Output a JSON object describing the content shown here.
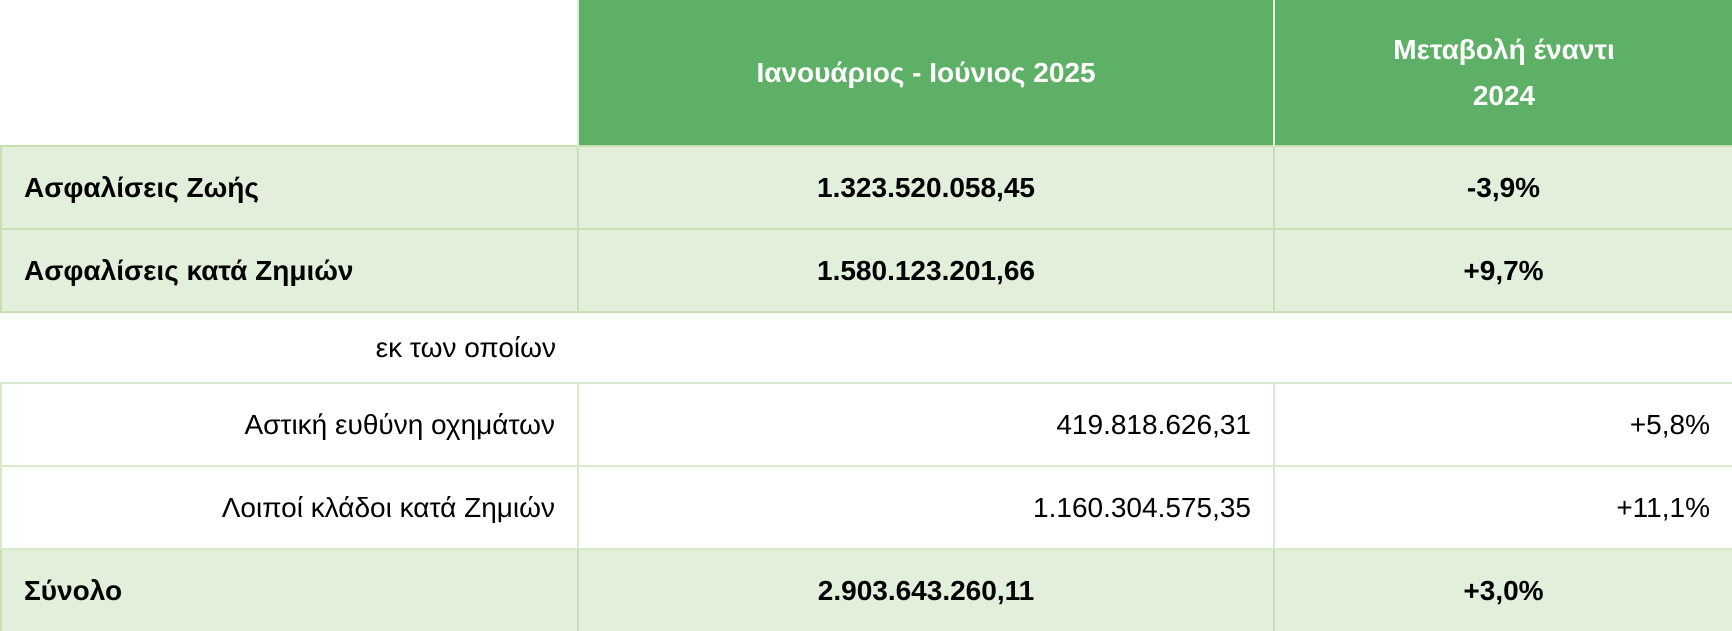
{
  "header": {
    "period": "Ιανουάριος -  Ιούνιος 2025",
    "change_line1": "Μεταβολή έναντι",
    "change_line2": "2024"
  },
  "rows": [
    {
      "label": "Ασφαλίσεις Ζωής",
      "value": "1.323.520.058,45",
      "change": "-3,9%"
    },
    {
      "label": "Ασφαλίσεις κατά Ζημιών",
      "value": "1.580.123.201,66",
      "change": "+9,7%"
    }
  ],
  "subheading": "εκ των οποίων",
  "subrows": [
    {
      "label": "Αστική ευθύνη οχημάτων",
      "value": "419.818.626,31",
      "change": "+5,8%"
    },
    {
      "label": "Λοιποί κλάδοι κατά Ζημιών",
      "value": "1.160.304.575,35",
      "change": "+11,1%"
    }
  ],
  "total": {
    "label": "Σύνολο",
    "value": "2.903.643.260,11",
    "change": "+3,0%"
  },
  "colors": {
    "header_green": "#5db065",
    "band_green": "#e2efda"
  }
}
